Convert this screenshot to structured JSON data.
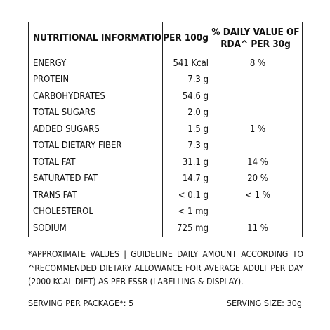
{
  "table": {
    "headers": {
      "name": "NUTRITIONAL INFORMATION*",
      "per100": "PER 100g",
      "daily": "% DAILY VALUE OF RDA^ PER 30g"
    },
    "rows": [
      {
        "name": "ENERGY",
        "per100": "541 Kcal",
        "daily": "8 %",
        "sub": false
      },
      {
        "name": "PROTEIN",
        "per100": "7.3 g",
        "daily": "",
        "sub": false
      },
      {
        "name": "CARBOHYDRATES",
        "per100": "54.6 g",
        "daily": "",
        "sub": false
      },
      {
        "name": "TOTAL SUGARS",
        "per100": "2.0 g",
        "daily": "",
        "sub": true
      },
      {
        "name": "ADDED SUGARS",
        "per100": "1.5 g",
        "daily": "1 %",
        "sub": true
      },
      {
        "name": "TOTAL DIETARY FIBER",
        "per100": "7.3 g",
        "daily": "",
        "sub": false
      },
      {
        "name": "TOTAL FAT",
        "per100": "31.1 g",
        "daily": "14 %",
        "sub": false
      },
      {
        "name": "SATURATED FAT",
        "per100": "14.7 g",
        "daily": "20 %",
        "sub": true
      },
      {
        "name": "TRANS FAT",
        "per100": "< 0.1 g",
        "daily": "< 1 %",
        "sub": true
      },
      {
        "name": "CHOLESTEROL",
        "per100": "< 1 mg",
        "daily": "",
        "sub": false
      },
      {
        "name": "SODIUM",
        "per100": "725 mg",
        "daily": "11 %",
        "sub": false
      }
    ]
  },
  "footnote": {
    "line1": "*APPROXIMATE VALUES | GUIDELINE DAILY AMOUNT ACCORDING TO",
    "line2": "^RECOMMENDED DIETARY ALLOWANCE FOR AVERAGE ADULT PER DAY",
    "line3": "(2000 KCAL DIET) AS PER FSSR (LABELLING & DISPLAY)."
  },
  "serving": {
    "per_package": "SERVING PER PACKAGE*: 5",
    "size": "SERVING SIZE: 30g"
  }
}
